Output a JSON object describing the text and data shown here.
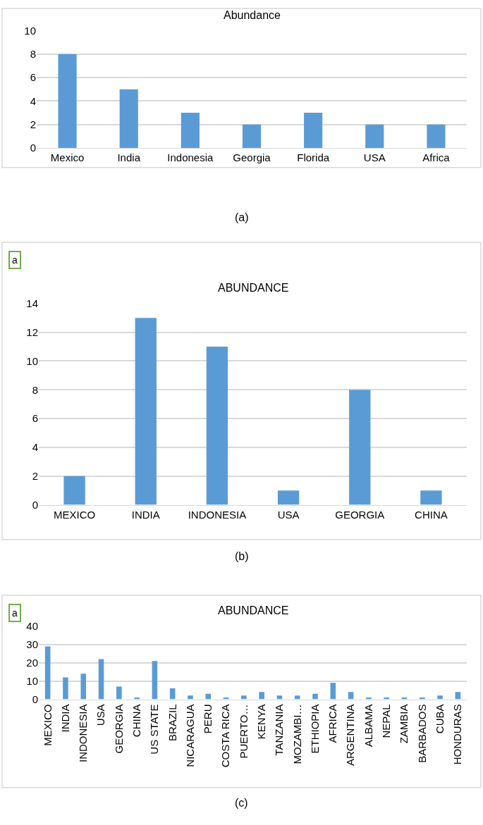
{
  "chart_data": [
    {
      "type": "bar",
      "title": "Abundance",
      "categories": [
        "Mexico",
        "India",
        "Indonesia",
        "Georgia",
        "Florida",
        "USA",
        "Africa"
      ],
      "values": [
        8,
        5,
        3,
        2,
        3,
        2,
        2
      ],
      "color": "#5b9bd5",
      "ylim": [
        0,
        10
      ],
      "yticks": [
        0,
        2,
        4,
        6,
        8,
        10
      ],
      "grid": "y",
      "annotations": [
        "(a)"
      ]
    },
    {
      "type": "bar",
      "title": "ABUNDANCE",
      "categories": [
        "MEXICO",
        "INDIA",
        "INDONESIA",
        "USA",
        "GEORGIA",
        "CHINA"
      ],
      "values": [
        2,
        13,
        11,
        1,
        8,
        1
      ],
      "color": "#5b9bd5",
      "ylim": [
        0,
        14
      ],
      "yticks": [
        0,
        2,
        4,
        6,
        8,
        10,
        12,
        14
      ],
      "grid": "y",
      "annotations": [
        "a",
        "(b)"
      ]
    },
    {
      "type": "bar",
      "title": "ABUNDANCE",
      "categories": [
        "MEXICO",
        "INDIA",
        "INDONESIA",
        "USA",
        "GEORGIA",
        "CHINA",
        "US STATE",
        "BRAZIL",
        "NICARAGUA",
        "PERU",
        "COSTA RICA",
        "PUERTO…",
        "KENYA",
        "TANZANIA",
        "MOZAMBI…",
        "ETHIOPIA",
        "AFRICA",
        "ARGENTINA",
        "ALBAMA",
        "NEPAL",
        "ZAMBIA",
        "BARBADOS",
        "CUBA",
        "HONDURAS"
      ],
      "values": [
        29,
        12,
        14,
        22,
        7,
        1,
        21,
        6,
        2,
        3,
        1,
        2,
        4,
        2,
        2,
        3,
        9,
        4,
        1,
        1,
        1,
        1,
        2,
        4
      ],
      "color": "#5b9bd5",
      "ylim": [
        0,
        40
      ],
      "yticks": [
        0,
        10,
        20,
        30,
        40
      ],
      "grid": "y",
      "annotations": [
        "a",
        "(c)"
      ]
    }
  ]
}
